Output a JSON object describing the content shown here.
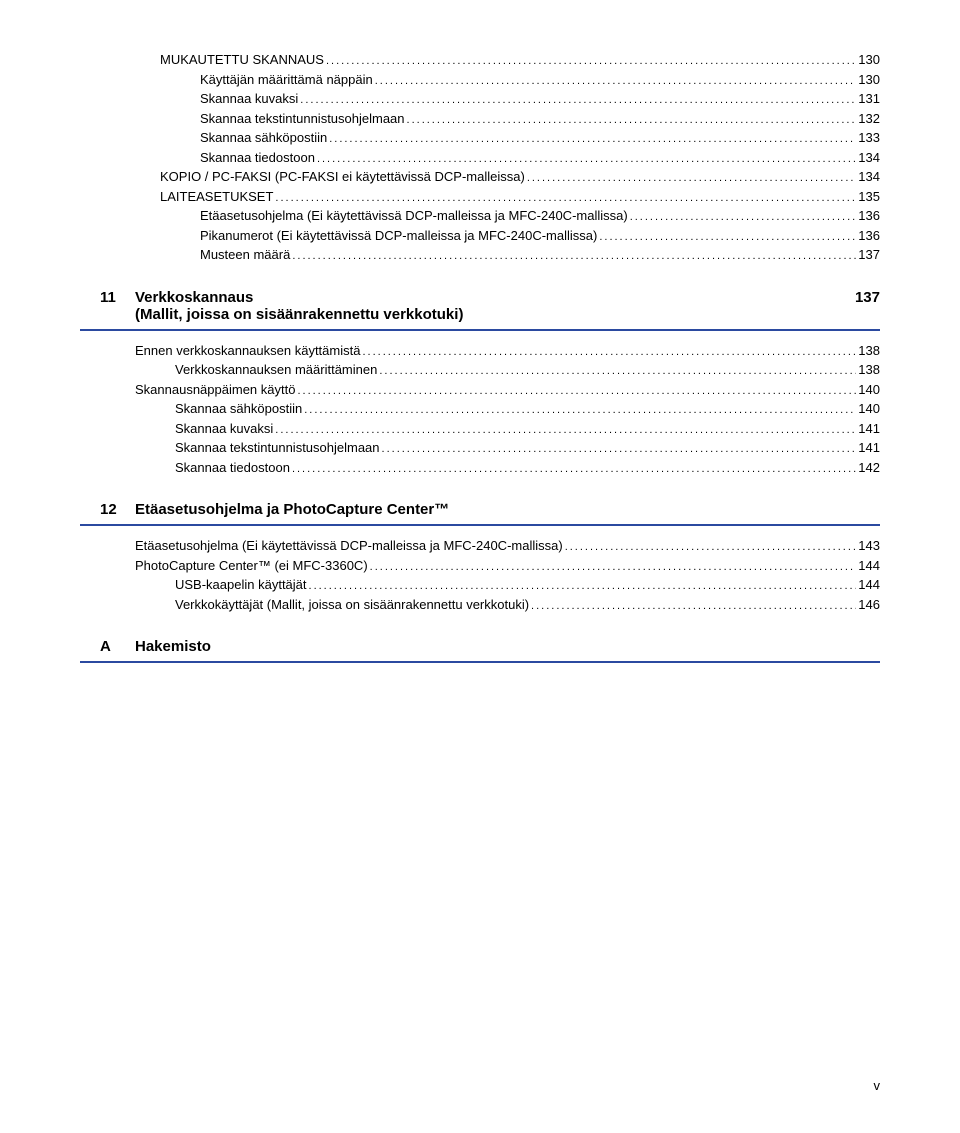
{
  "rule_color": "#2b4aa0",
  "fontsize_body": 13,
  "fontsize_heading": 15,
  "page_footer": "v",
  "orphan": [
    {
      "label": "MUKAUTETTU SKANNAUS",
      "page": "130",
      "lvl": "lvl2"
    },
    {
      "label": "Käyttäjän määrittämä näppäin",
      "page": "130",
      "lvl": "lvl3"
    },
    {
      "label": "Skannaa kuvaksi",
      "page": "131",
      "lvl": "lvl3"
    },
    {
      "label": "Skannaa tekstintunnistusohjelmaan",
      "page": "132",
      "lvl": "lvl3"
    },
    {
      "label": "Skannaa sähköpostiin",
      "page": "133",
      "lvl": "lvl3"
    },
    {
      "label": "Skannaa tiedostoon",
      "page": "134",
      "lvl": "lvl3"
    },
    {
      "label": "KOPIO / PC-FAKSI (PC-FAKSI ei käytettävissä DCP-malleissa)",
      "page": "134",
      "lvl": "lvl2"
    },
    {
      "label": "LAITEASETUKSET",
      "page": "135",
      "lvl": "lvl2"
    },
    {
      "label": "Etäasetusohjelma (Ei käytettävissä DCP-malleissa ja MFC-240C-mallissa)",
      "page": "136",
      "lvl": "lvl3"
    },
    {
      "label": "Pikanumerot (Ei käytettävissä DCP-malleissa ja MFC-240C-mallissa)",
      "page": "136",
      "lvl": "lvl3"
    },
    {
      "label": "Musteen määrä",
      "page": "137",
      "lvl": "lvl3"
    }
  ],
  "section11": {
    "num": "11",
    "title_line1": "Verkkoskannaus",
    "title_line2": "(Mallit, joissa on sisäänrakennettu verkkotuki)",
    "title_page": "137",
    "items": [
      {
        "label": "Ennen verkkoskannauksen käyttämistä",
        "page": "138",
        "lvl": "lvl1"
      },
      {
        "label": "Verkkoskannauksen määrittäminen",
        "page": "138",
        "lvl": "lvl2"
      },
      {
        "label": "Skannausnäppäimen käyttö",
        "page": "140",
        "lvl": "lvl1"
      },
      {
        "label": "Skannaa sähköpostiin",
        "page": "140",
        "lvl": "lvl2"
      },
      {
        "label": "Skannaa kuvaksi",
        "page": "141",
        "lvl": "lvl2"
      },
      {
        "label": "Skannaa tekstintunnistusohjelmaan",
        "page": "141",
        "lvl": "lvl2"
      },
      {
        "label": "Skannaa tiedostoon",
        "page": "142",
        "lvl": "lvl2"
      }
    ]
  },
  "section12": {
    "num": "12",
    "title": "Etäasetusohjelma ja PhotoCapture Center™",
    "items": [
      {
        "label": "Etäasetusohjelma (Ei käytettävissä DCP-malleissa ja MFC-240C-mallissa)",
        "page": "143",
        "lvl": "lvl1"
      },
      {
        "label": "PhotoCapture Center™ (ei MFC-3360C)",
        "page": "144",
        "lvl": "lvl1"
      },
      {
        "label": "USB-kaapelin käyttäjät",
        "page": "144",
        "lvl": "lvl2"
      },
      {
        "label": "Verkkokäyttäjät (Mallit, joissa on sisäänrakennettu verkkotuki)",
        "page": "146",
        "lvl": "lvl2"
      }
    ]
  },
  "sectionA": {
    "num": "A",
    "title": "Hakemisto"
  }
}
